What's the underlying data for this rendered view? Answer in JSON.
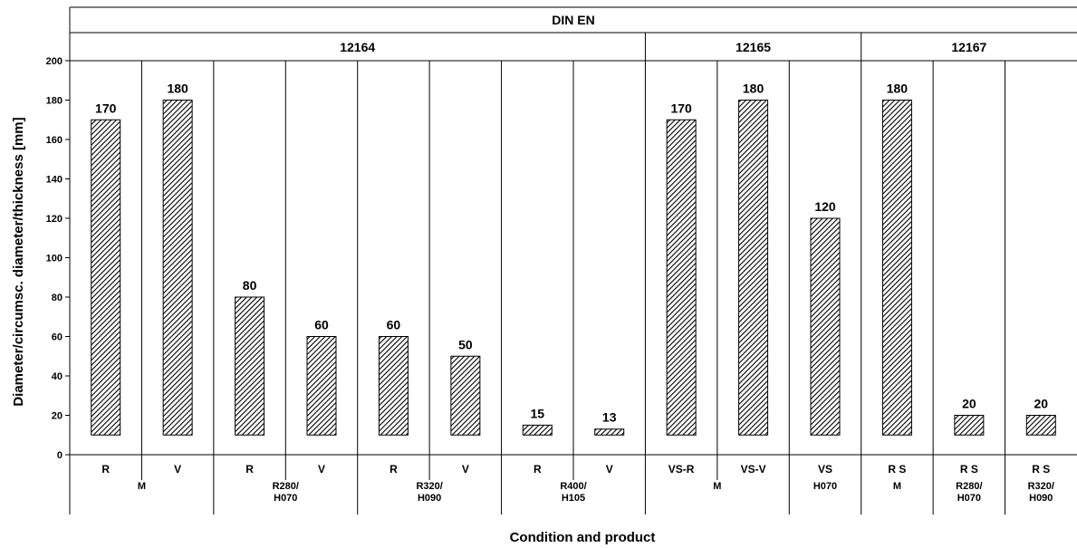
{
  "chart_data": {
    "type": "bar",
    "header_top": "DIN EN",
    "standards": [
      {
        "label": "12164",
        "span": [
          0,
          8
        ]
      },
      {
        "label": "12165",
        "span": [
          8,
          11
        ]
      },
      {
        "label": "12167",
        "span": [
          11,
          14
        ]
      }
    ],
    "categories": [
      "R",
      "V",
      "R",
      "V",
      "R",
      "V",
      "R",
      "V",
      "VS-R",
      "VS-V",
      "VS",
      "R S",
      "R S",
      "R S"
    ],
    "values": [
      170,
      180,
      80,
      60,
      60,
      50,
      15,
      13,
      170,
      180,
      120,
      180,
      20,
      20
    ],
    "value_labels": [
      "170",
      "180",
      "80",
      "60",
      "60",
      "50",
      "15",
      "13",
      "170",
      "180",
      "120",
      "180",
      "20",
      "20"
    ],
    "conditions": [
      {
        "lines": [
          "M"
        ],
        "span": [
          0,
          2
        ]
      },
      {
        "lines": [
          "R280/",
          "H070"
        ],
        "span": [
          2,
          4
        ]
      },
      {
        "lines": [
          "R320/",
          "H090"
        ],
        "span": [
          4,
          6
        ]
      },
      {
        "lines": [
          "R400/",
          "H105"
        ],
        "span": [
          6,
          8
        ]
      },
      {
        "lines": [
          "M"
        ],
        "span": [
          8,
          10
        ]
      },
      {
        "lines": [
          "H070"
        ],
        "span": [
          10,
          11
        ]
      },
      {
        "lines": [
          "M"
        ],
        "span": [
          11,
          12
        ]
      },
      {
        "lines": [
          "R280/",
          "H070"
        ],
        "span": [
          12,
          13
        ]
      },
      {
        "lines": [
          "R320/",
          "H090"
        ],
        "span": [
          13,
          14
        ]
      }
    ],
    "ylabel": "Diameter/circumsc. diameter/thickness [mm]",
    "xlabel": "Condition and product",
    "ylim": [
      0,
      200
    ],
    "yticks": [
      "0",
      "20",
      "40",
      "60",
      "80",
      "100",
      "120",
      "140",
      "160",
      "180",
      "200"
    ],
    "bar_base": 10,
    "bar_pattern": "diagonal-hatch",
    "colors": {
      "bar_fill": "#444444",
      "hatch": "#000000",
      "line": "#000000"
    },
    "grid": false
  }
}
